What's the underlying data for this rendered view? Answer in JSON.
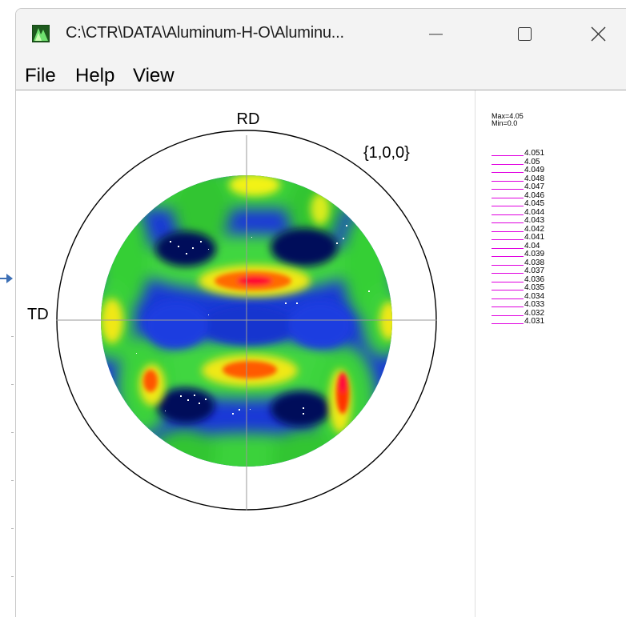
{
  "window": {
    "title": "C:\\CTR\\DATA\\Aluminum-H-O\\Aluminu...",
    "minimize_label": "Minimize",
    "maximize_label": "Maximize",
    "close_label": "Close"
  },
  "menu": {
    "items": [
      "File",
      "Help",
      "View"
    ]
  },
  "plot": {
    "rd_label": "RD",
    "td_label": "TD",
    "plane_label": "{1,0,0}"
  },
  "legend": {
    "max_text": "Max=4.05",
    "min_text": "Min=0.0",
    "values": [
      "4.051",
      "4.05",
      "4.049",
      "4.048",
      "4.047",
      "4.046",
      "4.045",
      "4.044",
      "4.043",
      "4.042",
      "4.041",
      "4.04",
      "4.039",
      "4.038",
      "4.037",
      "4.036",
      "4.035",
      "4.034",
      "4.033",
      "4.032",
      "4.031"
    ],
    "line_color": "#e000e0"
  },
  "colors": {
    "accent_arrow": "#3c6fb5",
    "titlebar_bg": "#f3f3f3"
  }
}
